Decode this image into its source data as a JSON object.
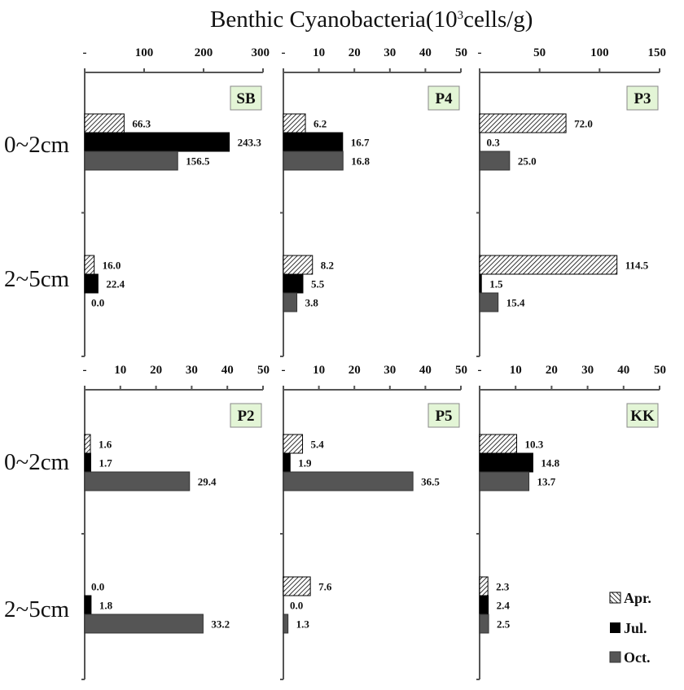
{
  "chart_data": {
    "type": "bar",
    "orientation": "horizontal",
    "title": "Benthic Cyanobacteria(10^3cells/g)",
    "title_parts": {
      "main": "Benthic Cyanobacteria(10",
      "sup": "3",
      "tail": "cells/g)"
    },
    "categories": [
      "0~2cm",
      "2~5cm"
    ],
    "legend": {
      "placement": "bottom-right",
      "entries": [
        {
          "name": "Apr.",
          "style": "hatched"
        },
        {
          "name": "Jul.",
          "style": "solid",
          "color": "#000000"
        },
        {
          "name": "Oct.",
          "style": "solid",
          "color": "#555555"
        }
      ]
    },
    "colors": {
      "apr_fill": "#ffffff",
      "apr_hatch": "#000000",
      "jul": "#000000",
      "oct": "#555555",
      "site_box": "#e3f5d6",
      "axis": "#555555"
    },
    "panels": [
      {
        "site": "SB",
        "xlim": [
          0,
          300
        ],
        "xticks": [
          "-",
          "100",
          "200",
          "300"
        ],
        "series": [
          {
            "name": "Apr.",
            "values": [
              66.3,
              16.0
            ],
            "labels": [
              "66.3",
              "16.0"
            ]
          },
          {
            "name": "Jul.",
            "values": [
              243.3,
              22.4
            ],
            "labels": [
              "243.3",
              "22.4"
            ]
          },
          {
            "name": "Oct.",
            "values": [
              156.5,
              0.0
            ],
            "labels": [
              "156.5",
              "0.0"
            ]
          }
        ]
      },
      {
        "site": "P4",
        "xlim": [
          0,
          50
        ],
        "xticks": [
          "-",
          "10",
          "20",
          "30",
          "40",
          "50"
        ],
        "series": [
          {
            "name": "Apr.",
            "values": [
              6.2,
              8.2
            ],
            "labels": [
              "6.2",
              "8.2"
            ]
          },
          {
            "name": "Jul.",
            "values": [
              16.7,
              5.5
            ],
            "labels": [
              "16.7",
              "5.5"
            ]
          },
          {
            "name": "Oct.",
            "values": [
              16.8,
              3.8
            ],
            "labels": [
              "16.8",
              "3.8"
            ]
          }
        ]
      },
      {
        "site": "P3",
        "xlim": [
          0,
          150
        ],
        "xticks": [
          "-",
          "50",
          "100",
          "150"
        ],
        "series": [
          {
            "name": "Apr.",
            "values": [
              72.0,
              114.5
            ],
            "labels": [
              "72.0",
              "114.5"
            ]
          },
          {
            "name": "Jul.",
            "values": [
              0.3,
              1.5
            ],
            "labels": [
              "0.3",
              "1.5"
            ]
          },
          {
            "name": "Oct.",
            "values": [
              25.0,
              15.4
            ],
            "labels": [
              "25.0",
              "15.4"
            ]
          }
        ]
      },
      {
        "site": "P2",
        "xlim": [
          0,
          50
        ],
        "xticks": [
          "-",
          "10",
          "20",
          "30",
          "40",
          "50"
        ],
        "series": [
          {
            "name": "Apr.",
            "values": [
              1.6,
              0.0
            ],
            "labels": [
              "1.6",
              "0.0"
            ]
          },
          {
            "name": "Jul.",
            "values": [
              1.7,
              1.8
            ],
            "labels": [
              "1.7",
              "1.8"
            ]
          },
          {
            "name": "Oct.",
            "values": [
              29.4,
              33.2
            ],
            "labels": [
              "29.4",
              "33.2"
            ]
          }
        ]
      },
      {
        "site": "P5",
        "xlim": [
          0,
          50
        ],
        "xticks": [
          "-",
          "10",
          "20",
          "30",
          "40",
          "50"
        ],
        "series": [
          {
            "name": "Apr.",
            "values": [
              5.4,
              7.6
            ],
            "labels": [
              "5.4",
              "7.6"
            ]
          },
          {
            "name": "Jul.",
            "values": [
              1.9,
              0.0
            ],
            "labels": [
              "1.9",
              "0.0"
            ]
          },
          {
            "name": "Oct.",
            "values": [
              36.5,
              1.3
            ],
            "labels": [
              "36.5",
              "1.3"
            ]
          }
        ]
      },
      {
        "site": "KK",
        "xlim": [
          0,
          50
        ],
        "xticks": [
          "-",
          "10",
          "20",
          "30",
          "40",
          "50"
        ],
        "series": [
          {
            "name": "Apr.",
            "values": [
              10.3,
              2.3
            ],
            "labels": [
              "10.3",
              "2.3"
            ]
          },
          {
            "name": "Jul.",
            "values": [
              14.8,
              2.4
            ],
            "labels": [
              "14.8",
              "2.4"
            ]
          },
          {
            "name": "Oct.",
            "values": [
              13.7,
              2.5
            ],
            "labels": [
              "13.7",
              "2.5"
            ]
          }
        ]
      }
    ]
  }
}
